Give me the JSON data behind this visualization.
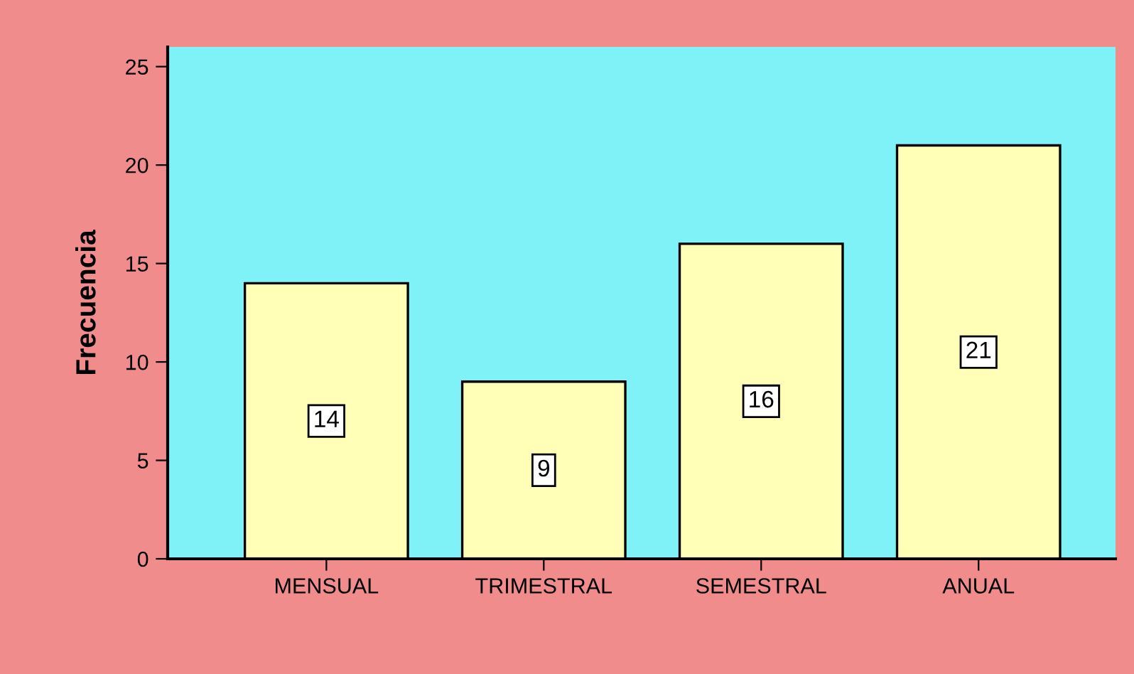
{
  "chart_data": {
    "type": "bar",
    "ylabel": "Frecuencia",
    "categories": [
      "MENSUAL",
      "TRIMESTRAL",
      "SEMESTRAL",
      "ANUAL"
    ],
    "values": [
      14,
      9,
      16,
      21
    ],
    "color": "#ffffb8",
    "ylim": [
      0,
      26
    ],
    "yticks": [
      0,
      5,
      10,
      15,
      20,
      25
    ],
    "data_labels": true,
    "grid": false,
    "legend": false
  }
}
